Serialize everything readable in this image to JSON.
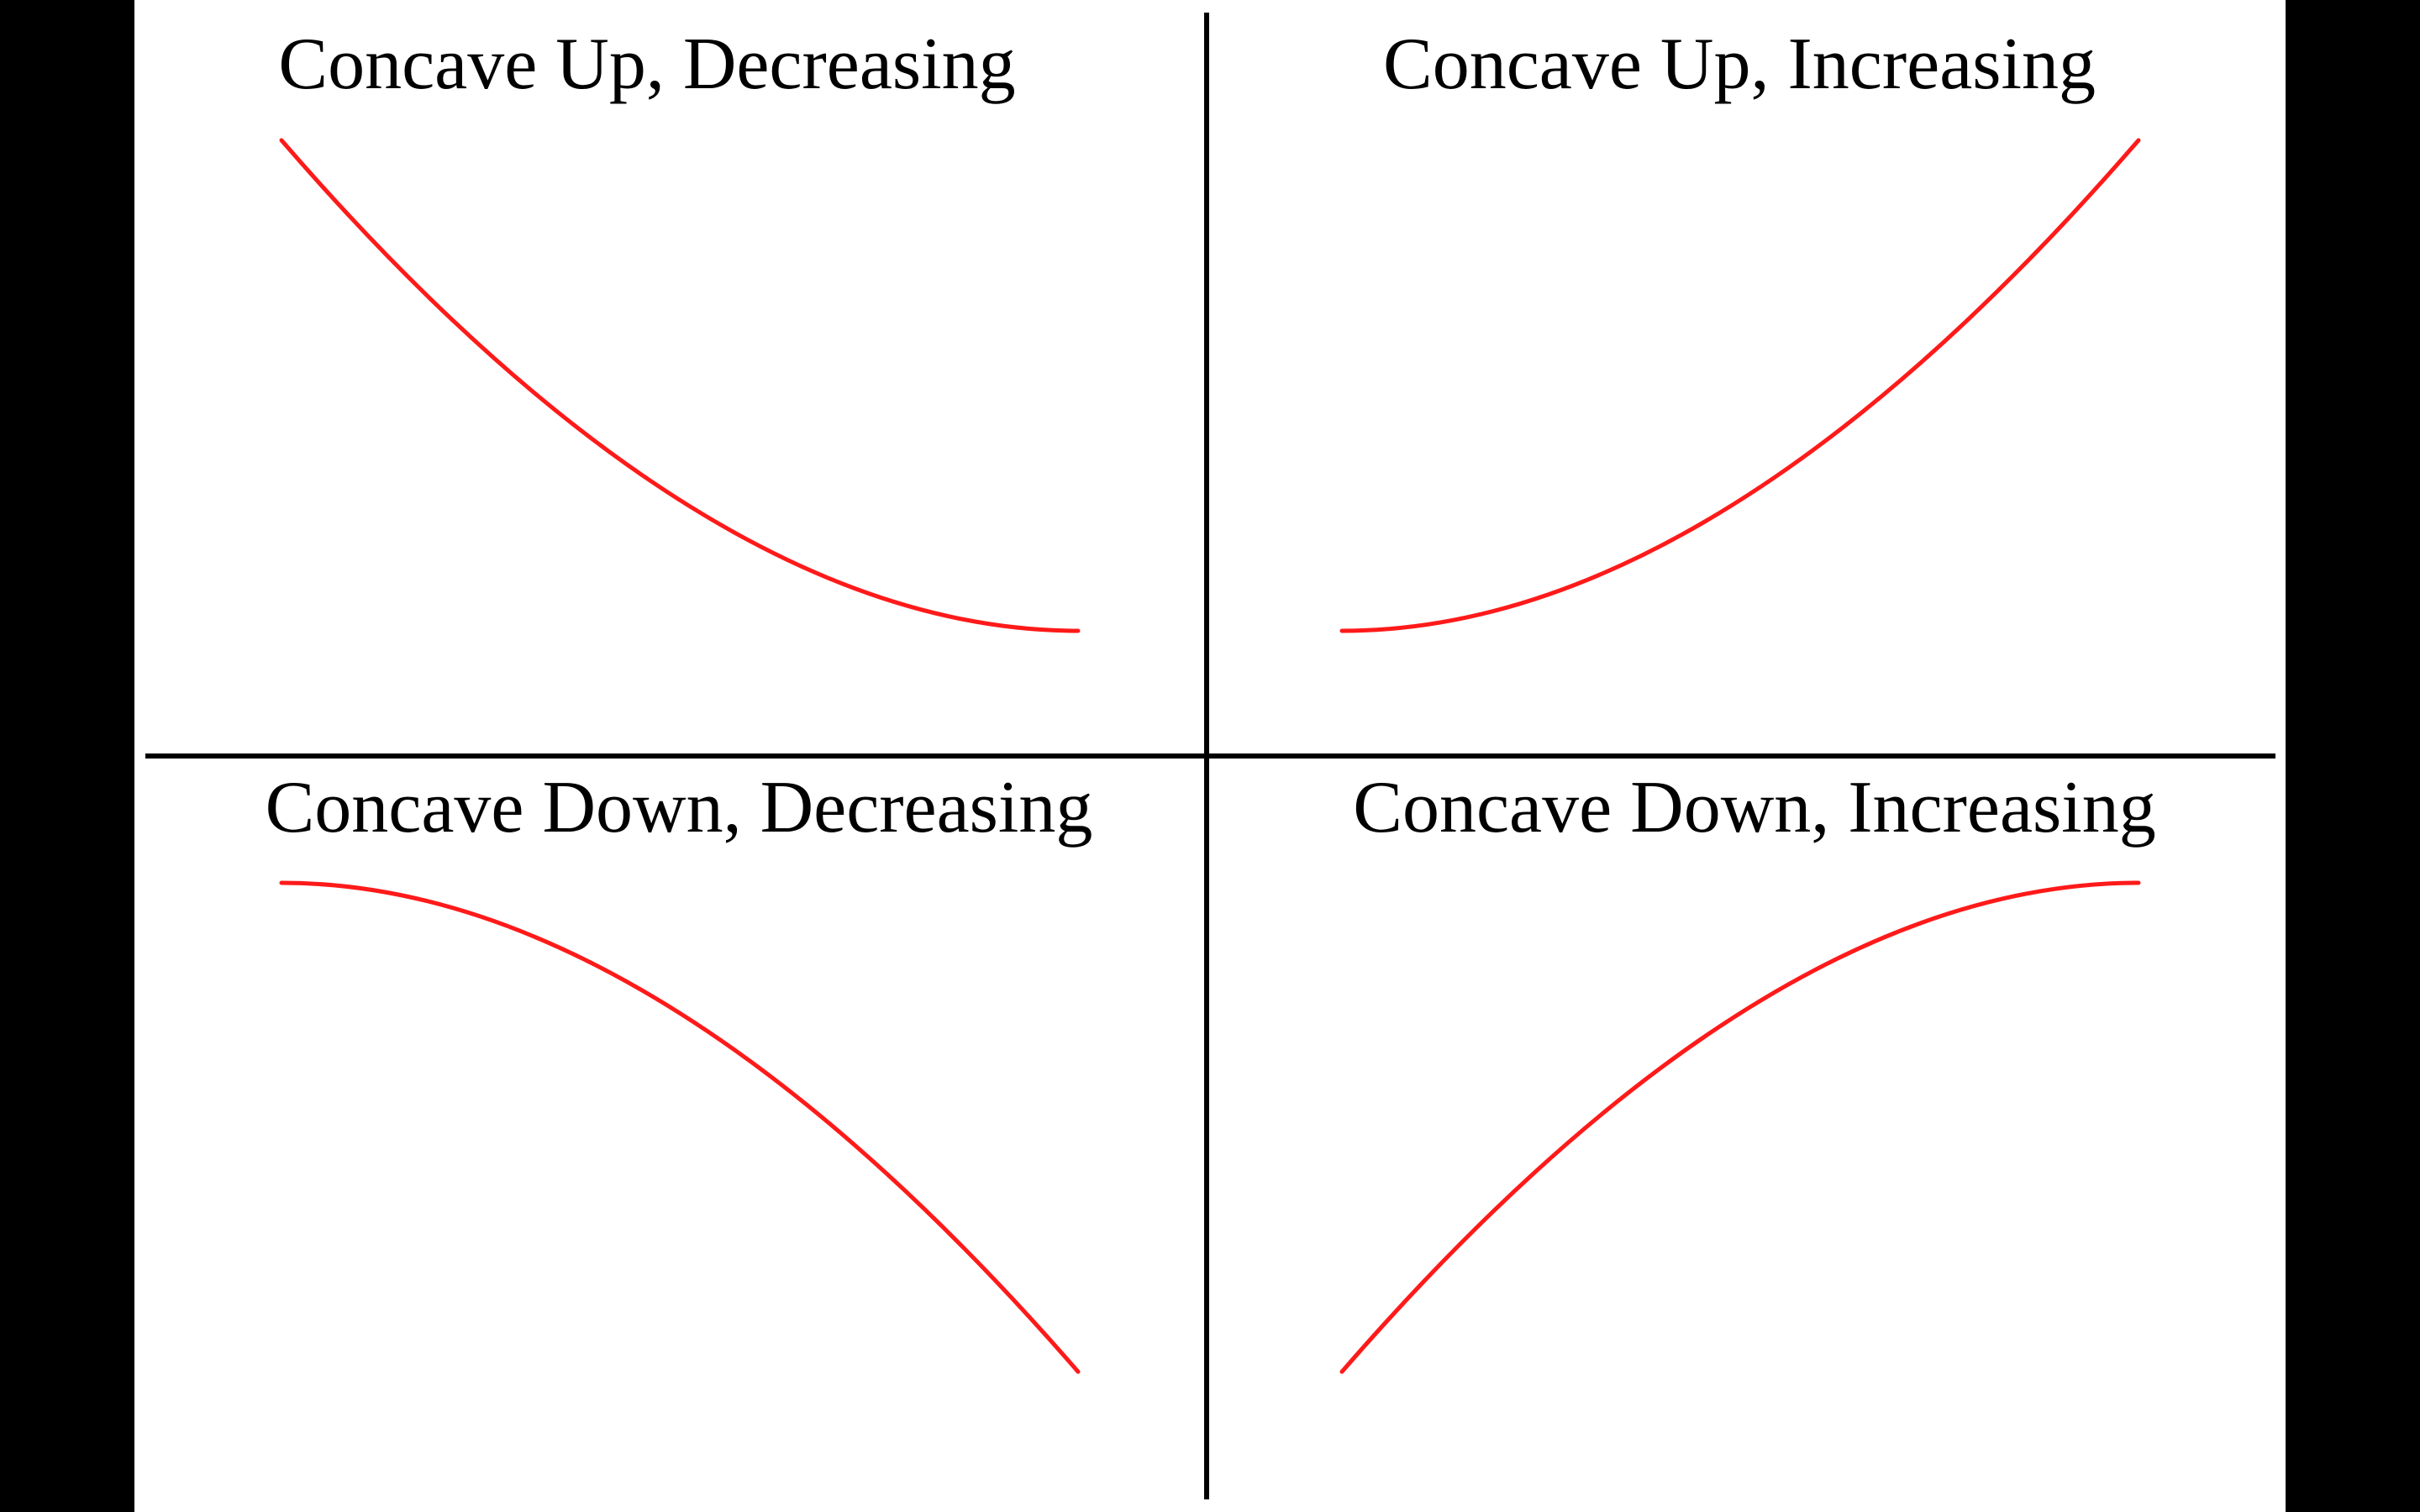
{
  "colors": {
    "background": "#000000",
    "panel": "#ffffff",
    "axis": "#000000",
    "curve": "#ff1a1a",
    "text": "#000000"
  },
  "quadrants": {
    "top_left": {
      "title": "Concave Up, Decreasing"
    },
    "top_right": {
      "title": "Concave Up, Increasing"
    },
    "bottom_left": {
      "title": "Concave Down, Decreasing"
    },
    "bottom_right": {
      "title": "Concave Down, Increasing"
    }
  }
}
